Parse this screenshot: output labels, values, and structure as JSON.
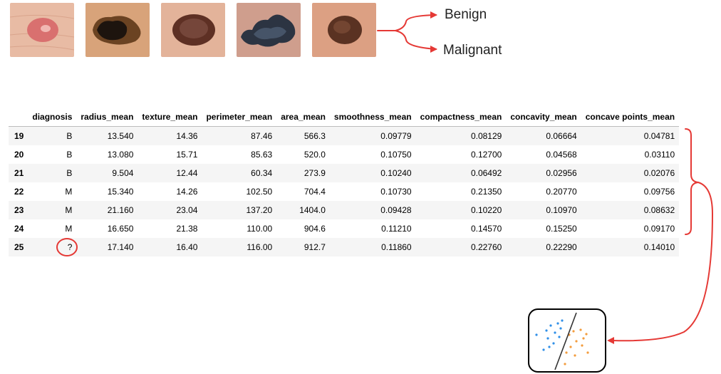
{
  "images": [
    {
      "name": "lesion-1",
      "skin": "#e8bba4",
      "spot": "#d9706f",
      "highlight": "#f1b8b2"
    },
    {
      "name": "lesion-2",
      "skin": "#d8a37a",
      "spot": "#1d140e",
      "highlight": "#6b4322"
    },
    {
      "name": "lesion-3",
      "skin": "#e3b39a",
      "spot": "#5e3024",
      "highlight": "#86554a"
    },
    {
      "name": "lesion-4",
      "skin": "#cf9e8d",
      "spot": "#2c3442",
      "highlight": "#465468"
    },
    {
      "name": "lesion-5",
      "skin": "#dca083",
      "spot": "#5a3222",
      "highlight": "#7d4d37"
    }
  ],
  "labels": {
    "benign": "Benign",
    "malignant": "Malignant"
  },
  "table": {
    "columns": [
      "",
      "diagnosis",
      "radius_mean",
      "texture_mean",
      "perimeter_mean",
      "area_mean",
      "smoothness_mean",
      "compactness_mean",
      "concavity_mean",
      "concave points_mean"
    ],
    "rows": [
      [
        "19",
        "B",
        "13.540",
        "14.36",
        "87.46",
        "566.3",
        "0.09779",
        "0.08129",
        "0.06664",
        "0.04781"
      ],
      [
        "20",
        "B",
        "13.080",
        "15.71",
        "85.63",
        "520.0",
        "0.10750",
        "0.12700",
        "0.04568",
        "0.03110"
      ],
      [
        "21",
        "B",
        "9.504",
        "12.44",
        "60.34",
        "273.9",
        "0.10240",
        "0.06492",
        "0.02956",
        "0.02076"
      ],
      [
        "22",
        "M",
        "15.340",
        "14.26",
        "102.50",
        "704.4",
        "0.10730",
        "0.21350",
        "0.20770",
        "0.09756"
      ],
      [
        "23",
        "M",
        "21.160",
        "23.04",
        "137.20",
        "1404.0",
        "0.09428",
        "0.10220",
        "0.10970",
        "0.08632"
      ],
      [
        "24",
        "M",
        "16.650",
        "21.38",
        "110.00",
        "904.6",
        "0.11210",
        "0.14570",
        "0.15250",
        "0.09170"
      ],
      [
        "25",
        "?",
        "17.140",
        "16.40",
        "116.00",
        "912.7",
        "0.11860",
        "0.22760",
        "0.22290",
        "0.14010"
      ]
    ]
  },
  "colors": {
    "arrow": "#e53935",
    "benign_points": "#2f8fe8",
    "malignant_points": "#f39c3d",
    "separator": "#333333"
  },
  "classifier": {
    "icon": "scatter-classifier-icon"
  }
}
